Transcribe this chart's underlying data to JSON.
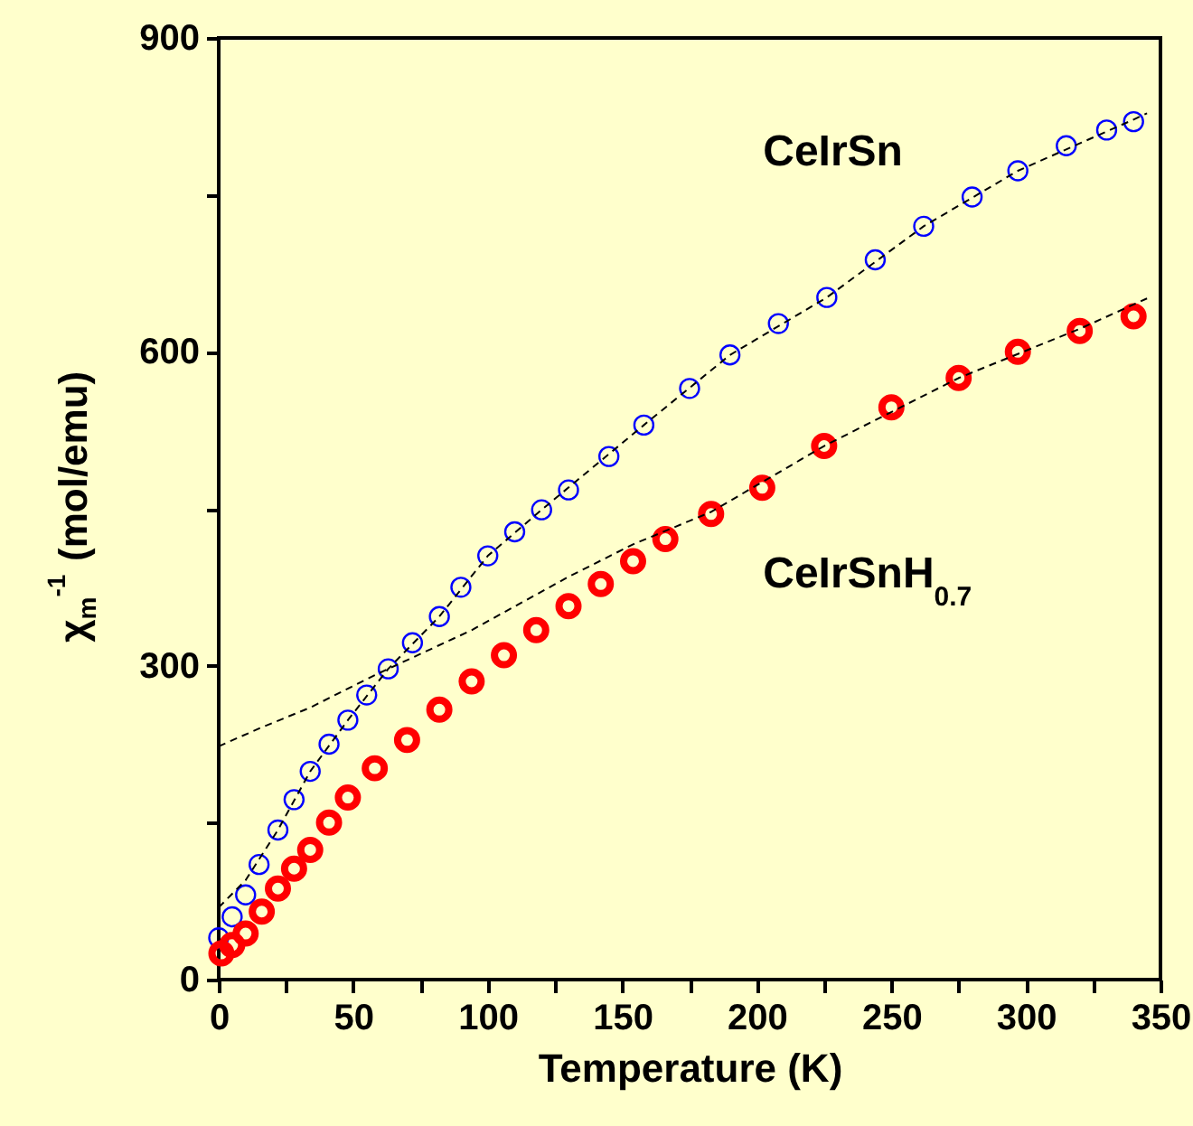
{
  "chart_data": {
    "type": "scatter",
    "xlabel": "Temperature (K)",
    "ylabel": "χ$_{m}$$^{-1}$ (mol/emu)",
    "xlim": [
      0,
      350
    ],
    "xticks": [
      0,
      {
        "value": 25,
        "label": null
      },
      50,
      {
        "value": 75,
        "label": null
      },
      100,
      {
        "value": 125,
        "label": null
      },
      150,
      {
        "value": 175,
        "label": null
      },
      200,
      {
        "value": 225,
        "label": null
      },
      250,
      {
        "value": 275,
        "label": null
      },
      300,
      {
        "value": 325,
        "label": null
      },
      350
    ],
    "ylim": [
      0,
      900
    ],
    "yticks": [
      0,
      {
        "value": 150,
        "label": null
      },
      300,
      {
        "value": 450,
        "label": null
      },
      600,
      {
        "value": 750,
        "label": null
      },
      900
    ],
    "series": [
      {
        "name": "CeIrSn",
        "color": "#0000ff",
        "marker": "circle",
        "x": [
          0,
          5,
          10,
          15,
          22,
          28,
          34,
          41,
          48,
          55,
          63,
          72,
          82,
          90,
          100,
          110,
          120,
          130,
          145,
          158,
          175,
          190,
          208,
          226,
          244,
          262,
          280,
          297,
          315,
          330,
          340
        ],
        "values": [
          40,
          60,
          81,
          110,
          143,
          172,
          199,
          225,
          248,
          272,
          297,
          322,
          347,
          375,
          405,
          428,
          449,
          468,
          500,
          530,
          565,
          597,
          627,
          652,
          688,
          720,
          748,
          773,
          797,
          812,
          820
        ]
      },
      {
        "name": "CeIrSnH$_{0.7}$",
        "color": "#ff0000",
        "marker": "circle",
        "x": [
          1,
          5,
          10,
          16,
          22,
          28,
          34,
          41,
          48,
          58,
          70,
          82,
          94,
          106,
          118,
          130,
          142,
          154,
          166,
          183,
          202,
          225,
          250,
          275,
          297,
          320,
          340
        ],
        "values": [
          25,
          33,
          44,
          65,
          87,
          106,
          124,
          150,
          174,
          202,
          229,
          258,
          285,
          310,
          334,
          357,
          378,
          400,
          421,
          445,
          470,
          510,
          547,
          575,
          600,
          620,
          634
        ]
      },
      {
        "type": "line",
        "color": "#000000",
        "line_style": "dashed",
        "x": [
          0,
          10,
          22,
          34,
          48,
          63,
          82,
          100,
          120,
          158,
          190,
          226,
          262,
          297,
          340,
          345
        ],
        "values": [
          69,
          95,
          143,
          199,
          248,
          297,
          347,
          405,
          449,
          530,
          597,
          652,
          720,
          773,
          822,
          828
        ]
      },
      {
        "type": "line",
        "color": "#000000",
        "line_style": "dashed",
        "x": [
          0,
          15,
          34,
          58,
          94,
          130,
          154,
          183,
          225,
          275,
          320,
          345
        ],
        "values": [
          223,
          240,
          260,
          291,
          334,
          385,
          416,
          447,
          510,
          575,
          622,
          651
        ]
      }
    ]
  }
}
